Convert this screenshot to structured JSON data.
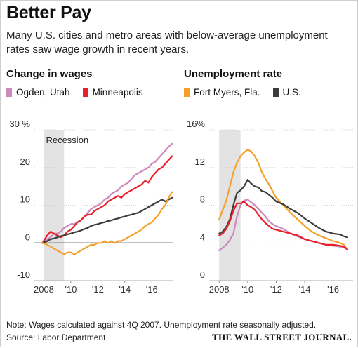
{
  "header": {
    "title": "Better Pay",
    "subtitle": "Many U.S. cities and metro areas with below-average unemployment rates saw wage growth in recent years."
  },
  "footer": {
    "note": "Note: Wages calculated against 4Q 2007. Unemployment rate seasonally adjusted.",
    "source": "Source: Labor Department",
    "publisher": "THE WALL STREET JOURNAL."
  },
  "chart_data": [
    {
      "type": "line",
      "title": "Change in wages",
      "ylim": [
        -10,
        30
      ],
      "xlim": [
        2007.3,
        2017.6
      ],
      "y_ticks": [
        {
          "value": 30,
          "label": "30 %"
        },
        {
          "value": 20,
          "label": "20"
        },
        {
          "value": 10,
          "label": "10"
        },
        {
          "value": 0,
          "label": "0"
        },
        {
          "value": -10,
          "label": "-10"
        }
      ],
      "x_ticks": [
        {
          "value": 2008,
          "label": "2008"
        },
        {
          "value": 2010,
          "label": "'10"
        },
        {
          "value": 2012,
          "label": "'12"
        },
        {
          "value": 2014,
          "label": "'14"
        },
        {
          "value": 2016,
          "label": "'16"
        }
      ],
      "shaded_region": {
        "label": "Recession",
        "from": 2008.0,
        "to": 2009.5
      },
      "zero_line": true,
      "series": [
        {
          "name": "Ogden, Utah",
          "color": "#cc88bb",
          "x": [
            2007.9,
            2008.25,
            2008.5,
            2008.75,
            2009,
            2009.25,
            2009.5,
            2009.75,
            2010,
            2010.25,
            2010.5,
            2010.75,
            2011,
            2011.25,
            2011.5,
            2011.75,
            2012,
            2012.25,
            2012.5,
            2012.75,
            2013,
            2013.25,
            2013.5,
            2013.75,
            2014,
            2014.25,
            2014.5,
            2014.75,
            2015,
            2015.25,
            2015.5,
            2015.75,
            2016,
            2016.25,
            2016.5,
            2016.75,
            2017,
            2017.25,
            2017.5
          ],
          "y": [
            0,
            1,
            1.5,
            2.5,
            2.5,
            3,
            4,
            4.5,
            5,
            5,
            5.5,
            6,
            7,
            8,
            9,
            9.5,
            10,
            10.5,
            11.5,
            12,
            13,
            13.5,
            14,
            15,
            15.5,
            16,
            17,
            18,
            18.5,
            19,
            19.5,
            20,
            21,
            21.5,
            22.5,
            23.5,
            24.5,
            25.5,
            26.3
          ]
        },
        {
          "name": "Minneapolis",
          "color": "#e8202b",
          "x": [
            2007.9,
            2008.25,
            2008.5,
            2008.75,
            2009,
            2009.25,
            2009.5,
            2009.75,
            2010,
            2010.25,
            2010.5,
            2010.75,
            2011,
            2011.25,
            2011.5,
            2011.75,
            2012,
            2012.25,
            2012.5,
            2012.75,
            2013,
            2013.25,
            2013.5,
            2013.75,
            2014,
            2014.25,
            2014.5,
            2014.75,
            2015,
            2015.25,
            2015.5,
            2015.75,
            2016,
            2016.25,
            2016.5,
            2016.75,
            2017,
            2017.25,
            2017.5
          ],
          "y": [
            0,
            2,
            3,
            2.5,
            2,
            1.5,
            2,
            3,
            3.5,
            4.5,
            5.5,
            6,
            7,
            7.5,
            7.5,
            8.5,
            9,
            9.5,
            10,
            11,
            11.5,
            12,
            12.5,
            12,
            13,
            13.5,
            14,
            14.5,
            15,
            15.5,
            16.5,
            16,
            17.5,
            18.5,
            19.5,
            20,
            21,
            22,
            23
          ]
        },
        {
          "name": "U.S.",
          "color": "#3c3c3c",
          "x": [
            2007.9,
            2008.25,
            2008.5,
            2008.75,
            2009,
            2009.25,
            2009.5,
            2009.75,
            2010,
            2010.25,
            2010.5,
            2010.75,
            2011,
            2011.25,
            2011.5,
            2011.75,
            2012,
            2012.25,
            2012.5,
            2012.75,
            2013,
            2013.25,
            2013.5,
            2013.75,
            2014,
            2014.25,
            2014.5,
            2014.75,
            2015,
            2015.25,
            2015.5,
            2015.75,
            2016,
            2016.25,
            2016.5,
            2016.75,
            2017,
            2017.25,
            2017.5
          ],
          "y": [
            0,
            0.5,
            1,
            1.2,
            1.5,
            1.8,
            2,
            2.3,
            2.5,
            2.8,
            3,
            3.3,
            3.7,
            4,
            4.5,
            4.8,
            5,
            5.3,
            5.5,
            5.8,
            6,
            6.3,
            6.5,
            6.8,
            7,
            7.3,
            7.5,
            7.8,
            8,
            8.5,
            9,
            9.5,
            10,
            10.5,
            11,
            11.5,
            11,
            11.5,
            12
          ]
        },
        {
          "name": "Fort Myers, Fla.",
          "color": "#f5a02a",
          "x": [
            2007.9,
            2008.25,
            2008.5,
            2008.75,
            2009,
            2009.25,
            2009.5,
            2009.75,
            2010,
            2010.25,
            2010.5,
            2010.75,
            2011,
            2011.25,
            2011.5,
            2011.75,
            2012,
            2012.25,
            2012.5,
            2012.75,
            2013,
            2013.25,
            2013.5,
            2013.75,
            2014,
            2014.25,
            2014.5,
            2014.75,
            2015,
            2015.25,
            2015.5,
            2015.75,
            2016,
            2016.25,
            2016.5,
            2016.75,
            2017,
            2017.25,
            2017.5
          ],
          "y": [
            0,
            -0.5,
            -1,
            -1.5,
            -2,
            -2.5,
            -3,
            -2.5,
            -2.5,
            -3,
            -2.5,
            -2,
            -1.5,
            -1,
            -0.5,
            -0.5,
            0,
            0,
            0.5,
            0,
            0.5,
            0,
            0.5,
            0.5,
            1,
            1.5,
            2,
            2.5,
            3,
            3.5,
            4.5,
            5,
            5.5,
            6.5,
            7.5,
            9,
            10,
            12,
            13.5
          ]
        }
      ]
    },
    {
      "type": "line",
      "title": "Unemployment rate",
      "ylim": [
        0,
        16
      ],
      "xlim": [
        2007.3,
        2017.4
      ],
      "y_ticks": [
        {
          "value": 16,
          "label": "16%"
        },
        {
          "value": 12,
          "label": "12"
        },
        {
          "value": 8,
          "label": "8"
        },
        {
          "value": 4,
          "label": "4"
        },
        {
          "value": 0,
          "label": "0"
        }
      ],
      "x_ticks": [
        {
          "value": 2008,
          "label": "2008"
        },
        {
          "value": 2010,
          "label": "'10"
        },
        {
          "value": 2012,
          "label": "'12"
        },
        {
          "value": 2014,
          "label": "'14"
        },
        {
          "value": 2016,
          "label": "'16"
        }
      ],
      "shaded_region": {
        "label": "",
        "from": 2008.0,
        "to": 2009.5
      },
      "zero_line": false,
      "series": [
        {
          "name": "Fort Myers, Fla.",
          "color": "#f5a02a",
          "x": [
            2008,
            2008.25,
            2008.5,
            2008.75,
            2009,
            2009.25,
            2009.5,
            2009.75,
            2010,
            2010.25,
            2010.5,
            2010.75,
            2011,
            2011.25,
            2011.5,
            2011.75,
            2012,
            2012.5,
            2013,
            2013.5,
            2014,
            2014.5,
            2015,
            2015.5,
            2016,
            2016.5,
            2016.75,
            2017
          ],
          "y": [
            6.5,
            7.5,
            8.5,
            10,
            11.5,
            12.5,
            13.2,
            13.6,
            13.9,
            13.7,
            13.2,
            12.5,
            11.5,
            10.8,
            10.2,
            9.5,
            8.8,
            8,
            7.2,
            6.5,
            5.8,
            5.2,
            4.8,
            4.5,
            4.2,
            4,
            3.8,
            3.3
          ]
        },
        {
          "name": "U.S.",
          "color": "#3c3c3c",
          "x": [
            2008,
            2008.25,
            2008.5,
            2008.75,
            2009,
            2009.25,
            2009.5,
            2009.75,
            2010,
            2010.25,
            2010.5,
            2010.75,
            2011,
            2011.25,
            2011.5,
            2011.75,
            2012,
            2012.5,
            2013,
            2013.5,
            2014,
            2014.5,
            2015,
            2015.5,
            2016,
            2016.5,
            2016.75,
            2017
          ],
          "y": [
            5,
            5.2,
            5.7,
            6.5,
            8,
            9.3,
            9.6,
            10,
            10.7,
            10.3,
            10,
            9.9,
            9.5,
            9.4,
            9.1,
            8.8,
            8.4,
            8.1,
            7.6,
            7.2,
            6.6,
            6.1,
            5.6,
            5.2,
            5,
            4.9,
            4.7,
            4.6
          ]
        },
        {
          "name": "Ogden, Utah",
          "color": "#cc88bb",
          "x": [
            2008,
            2008.25,
            2008.5,
            2008.75,
            2009,
            2009.25,
            2009.5,
            2009.75,
            2010,
            2010.25,
            2010.5,
            2010.75,
            2011,
            2011.25,
            2011.5,
            2011.75,
            2012,
            2012.5,
            2013,
            2013.5,
            2014,
            2014.5,
            2015,
            2015.5,
            2016,
            2016.5,
            2016.75,
            2017
          ],
          "y": [
            3.2,
            3.5,
            3.8,
            4.3,
            5,
            6.8,
            8,
            8.5,
            8.6,
            8.3,
            8,
            7.6,
            7.2,
            6.8,
            6.3,
            6,
            5.8,
            5.5,
            5,
            4.7,
            4.4,
            4.2,
            4,
            3.8,
            3.7,
            3.6,
            3.5,
            3.4
          ]
        },
        {
          "name": "Minneapolis",
          "color": "#e8202b",
          "x": [
            2008,
            2008.25,
            2008.5,
            2008.75,
            2009,
            2009.25,
            2009.5,
            2009.75,
            2010,
            2010.25,
            2010.5,
            2010.75,
            2011,
            2011.25,
            2011.5,
            2011.75,
            2012,
            2012.5,
            2013,
            2013.5,
            2014,
            2014.5,
            2015,
            2015.5,
            2016,
            2016.5,
            2016.75,
            2017
          ],
          "y": [
            4.8,
            5,
            5.5,
            6.3,
            7.4,
            8.2,
            8.2,
            8.4,
            8,
            7.8,
            7.5,
            7,
            6.5,
            6.1,
            5.8,
            5.5,
            5.4,
            5.2,
            5,
            4.8,
            4.4,
            4.2,
            4,
            3.8,
            3.8,
            3.7,
            3.6,
            3.3
          ]
        }
      ]
    }
  ],
  "legends": {
    "left": [
      {
        "name": "Ogden, Utah",
        "color": "#cc88bb"
      },
      {
        "name": "Minneapolis",
        "color": "#e8202b"
      }
    ],
    "right": [
      {
        "name": "Fort Myers, Fla.",
        "color": "#f5a02a"
      },
      {
        "name": "U.S.",
        "color": "#3c3c3c"
      }
    ]
  }
}
